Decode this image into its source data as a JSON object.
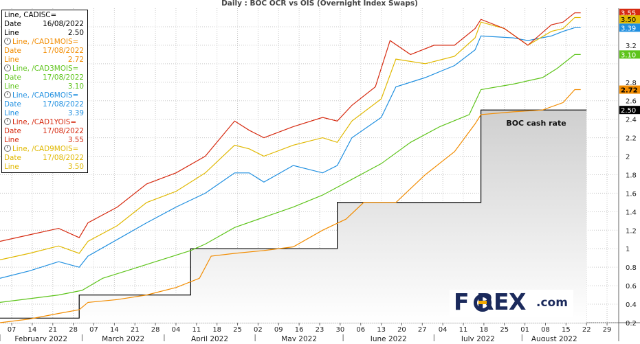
{
  "chart_data": {
    "type": "line",
    "title": "Daily : BOC OCR vs OIS (Overnight Index Swaps)",
    "ylim": [
      0.2,
      3.6
    ],
    "y_ticks": [
      0.2,
      0.4,
      0.6,
      0.8,
      1,
      1.2,
      1.4,
      1.6,
      1.8,
      2,
      2.2,
      2.4,
      2.6,
      2.8,
      3.2,
      3.4
    ],
    "x_day_labels": [
      "07",
      "14",
      "21",
      "28",
      "07",
      "14",
      "21",
      "28",
      "04",
      "11",
      "18",
      "25",
      "02",
      "09",
      "16",
      "23",
      "30",
      "06",
      "13",
      "20",
      "27",
      "04",
      "11",
      "18",
      "25",
      "01",
      "08",
      "15",
      "22",
      "29"
    ],
    "x_month_labels": [
      "February 2022",
      "March 2022",
      "April 2022",
      "May 2022",
      "June 2022",
      "July 2022",
      "August 2022"
    ],
    "annotation": "BOC cash rate",
    "series": [
      {
        "name": "CADISC=",
        "color": "#000000",
        "last": "2.50",
        "points": [
          [
            0,
            0.25
          ],
          [
            27,
            0.25
          ],
          [
            27,
            0.5
          ],
          [
            65,
            0.5
          ],
          [
            65,
            1
          ],
          [
            115,
            1
          ],
          [
            115,
            1.5
          ],
          [
            164,
            1.5
          ],
          [
            164,
            2.5
          ],
          [
            200,
            2.5
          ]
        ]
      },
      {
        "name": "/CAD1MOIS=",
        "color": "#f28c00",
        "last": "2.72",
        "points": [
          [
            0,
            0.2
          ],
          [
            10,
            0.24
          ],
          [
            20,
            0.3
          ],
          [
            27,
            0.34
          ],
          [
            30,
            0.42
          ],
          [
            40,
            0.45
          ],
          [
            50,
            0.5
          ],
          [
            60,
            0.58
          ],
          [
            68,
            0.68
          ],
          [
            72,
            0.92
          ],
          [
            80,
            0.95
          ],
          [
            90,
            0.98
          ],
          [
            100,
            1.02
          ],
          [
            110,
            1.2
          ],
          [
            118,
            1.32
          ],
          [
            124,
            1.5
          ],
          [
            135,
            1.5
          ],
          [
            145,
            1.8
          ],
          [
            155,
            2.05
          ],
          [
            162,
            2.35
          ],
          [
            164,
            2.45
          ],
          [
            175,
            2.48
          ],
          [
            185,
            2.5
          ],
          [
            192,
            2.58
          ],
          [
            196,
            2.72
          ],
          [
            198,
            2.72
          ]
        ]
      },
      {
        "name": "/CAD3MOIS=",
        "color": "#5ec41b",
        "last": "3.10",
        "points": [
          [
            0,
            0.42
          ],
          [
            10,
            0.46
          ],
          [
            20,
            0.5
          ],
          [
            28,
            0.55
          ],
          [
            35,
            0.68
          ],
          [
            45,
            0.78
          ],
          [
            55,
            0.88
          ],
          [
            65,
            0.98
          ],
          [
            70,
            1.05
          ],
          [
            80,
            1.23
          ],
          [
            90,
            1.34
          ],
          [
            100,
            1.45
          ],
          [
            110,
            1.58
          ],
          [
            120,
            1.75
          ],
          [
            130,
            1.92
          ],
          [
            140,
            2.15
          ],
          [
            150,
            2.32
          ],
          [
            160,
            2.45
          ],
          [
            164,
            2.72
          ],
          [
            175,
            2.78
          ],
          [
            185,
            2.85
          ],
          [
            190,
            2.95
          ],
          [
            196,
            3.1
          ],
          [
            198,
            3.1
          ]
        ]
      },
      {
        "name": "/CAD6MOIS=",
        "color": "#1f8fe0",
        "last": "3.39",
        "points": [
          [
            0,
            0.68
          ],
          [
            10,
            0.76
          ],
          [
            20,
            0.86
          ],
          [
            27,
            0.8
          ],
          [
            30,
            0.92
          ],
          [
            40,
            1.1
          ],
          [
            50,
            1.28
          ],
          [
            60,
            1.45
          ],
          [
            70,
            1.6
          ],
          [
            80,
            1.82
          ],
          [
            85,
            1.82
          ],
          [
            90,
            1.72
          ],
          [
            100,
            1.9
          ],
          [
            110,
            1.82
          ],
          [
            115,
            1.9
          ],
          [
            120,
            2.2
          ],
          [
            130,
            2.42
          ],
          [
            135,
            2.75
          ],
          [
            145,
            2.85
          ],
          [
            155,
            2.98
          ],
          [
            162,
            3.15
          ],
          [
            164,
            3.3
          ],
          [
            175,
            3.28
          ],
          [
            180,
            3.25
          ],
          [
            188,
            3.3
          ],
          [
            192,
            3.35
          ],
          [
            196,
            3.39
          ],
          [
            198,
            3.39
          ]
        ]
      },
      {
        "name": "/CAD1YOIS=",
        "color": "#d62a10",
        "last": "3.55",
        "points": [
          [
            0,
            1.08
          ],
          [
            10,
            1.15
          ],
          [
            20,
            1.22
          ],
          [
            27,
            1.12
          ],
          [
            30,
            1.28
          ],
          [
            40,
            1.45
          ],
          [
            50,
            1.7
          ],
          [
            60,
            1.82
          ],
          [
            70,
            2.0
          ],
          [
            80,
            2.38
          ],
          [
            85,
            2.28
          ],
          [
            90,
            2.2
          ],
          [
            100,
            2.32
          ],
          [
            110,
            2.42
          ],
          [
            115,
            2.38
          ],
          [
            120,
            2.55
          ],
          [
            128,
            2.75
          ],
          [
            133,
            3.25
          ],
          [
            140,
            3.1
          ],
          [
            148,
            3.2
          ],
          [
            155,
            3.2
          ],
          [
            162,
            3.38
          ],
          [
            164,
            3.48
          ],
          [
            172,
            3.38
          ],
          [
            180,
            3.2
          ],
          [
            188,
            3.42
          ],
          [
            192,
            3.45
          ],
          [
            196,
            3.55
          ],
          [
            198,
            3.55
          ]
        ]
      },
      {
        "name": "/CAD9MOIS=",
        "color": "#e0b800",
        "last": "3.50",
        "points": [
          [
            0,
            0.88
          ],
          [
            10,
            0.95
          ],
          [
            20,
            1.03
          ],
          [
            27,
            0.95
          ],
          [
            30,
            1.08
          ],
          [
            40,
            1.25
          ],
          [
            50,
            1.5
          ],
          [
            60,
            1.62
          ],
          [
            70,
            1.82
          ],
          [
            80,
            2.12
          ],
          [
            85,
            2.08
          ],
          [
            90,
            2.0
          ],
          [
            100,
            2.12
          ],
          [
            110,
            2.2
          ],
          [
            115,
            2.15
          ],
          [
            120,
            2.38
          ],
          [
            130,
            2.62
          ],
          [
            135,
            3.05
          ],
          [
            145,
            3.0
          ],
          [
            155,
            3.08
          ],
          [
            162,
            3.28
          ],
          [
            164,
            3.45
          ],
          [
            172,
            3.38
          ],
          [
            180,
            3.2
          ],
          [
            188,
            3.35
          ],
          [
            192,
            3.38
          ],
          [
            196,
            3.5
          ],
          [
            198,
            3.5
          ]
        ]
      }
    ]
  },
  "legend": {
    "rows": [
      {
        "label": "Line, CADISC=",
        "value": "",
        "color": "#000000",
        "icon": false
      },
      {
        "label": "Date",
        "value": "16/08/2022",
        "color": "#000000",
        "icon": false
      },
      {
        "label": "Line",
        "value": "2.50",
        "color": "#000000",
        "icon": false
      },
      {
        "label": "Line, /CAD1MOIS=",
        "value": "",
        "color": "#f28c00",
        "icon": true
      },
      {
        "label": "Date",
        "value": "17/08/2022",
        "color": "#f28c00",
        "icon": false
      },
      {
        "label": "Line",
        "value": "2.72",
        "color": "#f28c00",
        "icon": false
      },
      {
        "label": "Line, /CAD3MOIS=",
        "value": "",
        "color": "#5ec41b",
        "icon": true
      },
      {
        "label": "Date",
        "value": "17/08/2022",
        "color": "#5ec41b",
        "icon": false
      },
      {
        "label": "Line",
        "value": "3.10",
        "color": "#5ec41b",
        "icon": false
      },
      {
        "label": "Line, /CAD6MOIS=",
        "value": "",
        "color": "#1f8fe0",
        "icon": true
      },
      {
        "label": "Date",
        "value": "17/08/2022",
        "color": "#1f8fe0",
        "icon": false
      },
      {
        "label": "Line",
        "value": "3.39",
        "color": "#1f8fe0",
        "icon": false
      },
      {
        "label": "Line, /CAD1YOIS=",
        "value": "",
        "color": "#d62a10",
        "icon": true
      },
      {
        "label": "Date",
        "value": "17/08/2022",
        "color": "#d62a10",
        "icon": false
      },
      {
        "label": "Line",
        "value": "3.55",
        "color": "#d62a10",
        "icon": false
      },
      {
        "label": "Line, /CAD9MOIS=",
        "value": "",
        "color": "#e0b800",
        "icon": true
      },
      {
        "label": "Date",
        "value": "17/08/2022",
        "color": "#e0b800",
        "icon": false
      },
      {
        "label": "Line",
        "value": "3.50",
        "color": "#e0b800",
        "icon": false
      }
    ]
  },
  "logo": {
    "brand": "F   REX",
    "suffix": ".com"
  }
}
